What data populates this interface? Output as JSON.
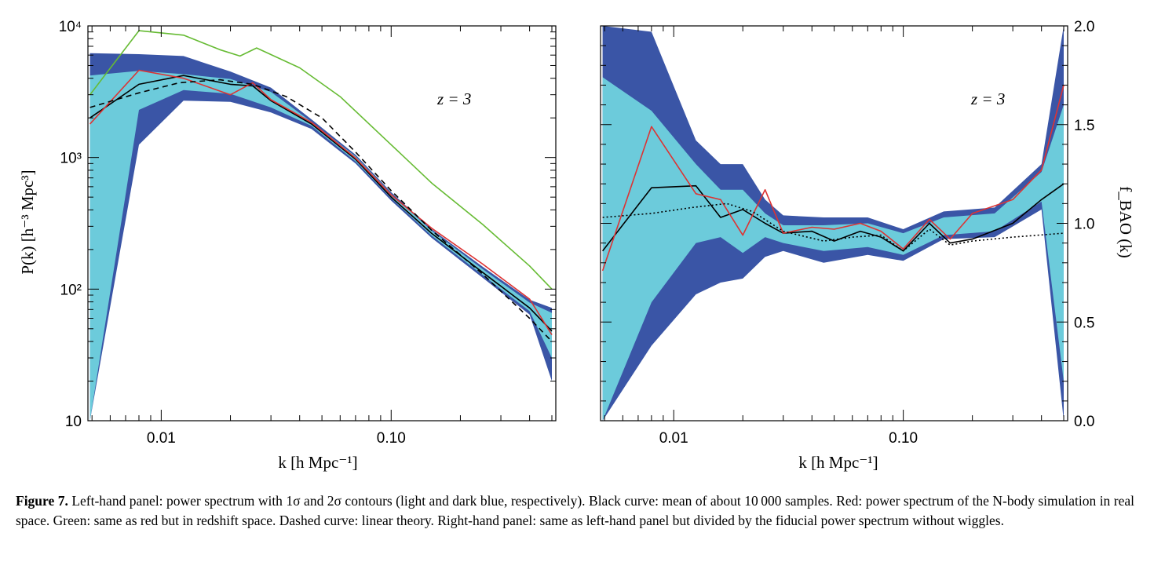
{
  "chart_data": [
    {
      "type": "line",
      "panel": "left",
      "xlabel": "k [h Mpc⁻¹]",
      "ylabel": "P(k) [h⁻³ Mpc³]",
      "x_scale": "log",
      "y_scale": "log",
      "xlim": [
        0.0048,
        0.52
      ],
      "ylim": [
        10,
        10000
      ],
      "x_ticks": [
        0.01,
        0.1
      ],
      "x_tick_labels": [
        "0.01",
        "0.10"
      ],
      "y_ticks": [
        10,
        100,
        1000,
        10000
      ],
      "y_tick_labels": [
        "10",
        "10²",
        "10³",
        "10⁴"
      ],
      "annotation": "z = 3",
      "bands": [
        {
          "level": "2sigma",
          "color": "#3a55a6",
          "x": [
            0.0049,
            0.008,
            0.0125,
            0.02,
            0.03,
            0.045,
            0.07,
            0.1,
            0.15,
            0.25,
            0.4,
            0.5
          ],
          "upper": [
            6200,
            6100,
            5900,
            4500,
            3400,
            1950,
            1050,
            545,
            285,
            148,
            83,
            72
          ],
          "lower": [
            10,
            1250,
            2700,
            2650,
            2200,
            1650,
            900,
            470,
            245,
            122,
            64,
            20
          ]
        },
        {
          "level": "1sigma",
          "color": "#6ccbdb",
          "x": [
            0.0049,
            0.008,
            0.0125,
            0.02,
            0.03,
            0.045,
            0.07,
            0.1,
            0.15,
            0.25,
            0.4,
            0.5
          ],
          "upper": [
            4200,
            4550,
            4300,
            3950,
            3150,
            1870,
            1020,
            530,
            278,
            142,
            79,
            66
          ],
          "lower": [
            10,
            2300,
            3250,
            3050,
            2400,
            1740,
            935,
            490,
            255,
            128,
            68,
            30
          ]
        }
      ],
      "series": [
        {
          "color": "#000000",
          "style": "solid",
          "x": [
            0.0049,
            0.008,
            0.0125,
            0.02,
            0.025,
            0.03,
            0.045,
            0.07,
            0.1,
            0.15,
            0.25,
            0.4,
            0.5
          ],
          "values": [
            2000,
            3600,
            4200,
            3600,
            3500,
            2700,
            1800,
            970,
            500,
            265,
            134,
            72,
            48
          ]
        },
        {
          "name": "Red",
          "color": "#dd3333",
          "style": "solid",
          "x": [
            0.0049,
            0.008,
            0.0125,
            0.02,
            0.025,
            0.03,
            0.045,
            0.07,
            0.1,
            0.15,
            0.25,
            0.4,
            0.5
          ],
          "values": [
            1800,
            4600,
            4000,
            3000,
            3700,
            2750,
            1850,
            990,
            520,
            290,
            155,
            84,
            45
          ]
        },
        {
          "name": "Green",
          "color": "#66bb33",
          "style": "solid",
          "x": [
            0.0049,
            0.008,
            0.0125,
            0.018,
            0.022,
            0.026,
            0.04,
            0.06,
            0.1,
            0.15,
            0.25,
            0.4,
            0.5
          ],
          "values": [
            3000,
            9200,
            8500,
            6600,
            5900,
            6800,
            4800,
            2900,
            1250,
            640,
            310,
            150,
            100
          ]
        },
        {
          "name": "Dashed curve",
          "color": "#000000",
          "style": "dashed",
          "x": [
            0.0049,
            0.008,
            0.012,
            0.018,
            0.025,
            0.035,
            0.05,
            0.07,
            0.1,
            0.15,
            0.25,
            0.4,
            0.5
          ],
          "values": [
            2400,
            3100,
            3700,
            3900,
            3600,
            2900,
            2000,
            1100,
            560,
            280,
            130,
            60,
            40
          ]
        }
      ]
    },
    {
      "type": "line",
      "panel": "right",
      "xlabel": "k [h Mpc⁻¹]",
      "ylabel": "f_BAO (k)",
      "x_scale": "log",
      "y_scale": "linear",
      "xlim": [
        0.0048,
        0.52
      ],
      "ylim": [
        0.0,
        2.0
      ],
      "x_ticks": [
        0.01,
        0.1
      ],
      "x_tick_labels": [
        "0.01",
        "0.10"
      ],
      "y_ticks": [
        0.0,
        0.5,
        1.0,
        1.5,
        2.0
      ],
      "y_tick_labels": [
        "0.0",
        "0.5",
        "1.0",
        "1.5",
        "2.0"
      ],
      "annotation": "z = 3",
      "bands": [
        {
          "level": "2sigma",
          "color": "#3a55a6",
          "x": [
            0.0049,
            0.008,
            0.0125,
            0.016,
            0.02,
            0.025,
            0.03,
            0.045,
            0.07,
            0.1,
            0.15,
            0.25,
            0.4,
            0.5
          ],
          "upper": [
            2.0,
            1.97,
            1.42,
            1.3,
            1.3,
            1.12,
            1.04,
            1.03,
            1.03,
            0.97,
            1.06,
            1.08,
            1.3,
            2.0
          ],
          "lower": [
            0.0,
            0.38,
            0.64,
            0.7,
            0.72,
            0.83,
            0.86,
            0.8,
            0.84,
            0.81,
            0.92,
            0.93,
            1.07,
            0.0
          ]
        },
        {
          "level": "1sigma",
          "color": "#6ccbdb",
          "x": [
            0.0049,
            0.008,
            0.0125,
            0.016,
            0.02,
            0.025,
            0.03,
            0.045,
            0.07,
            0.1,
            0.15,
            0.25,
            0.4,
            0.5
          ],
          "upper": [
            1.74,
            1.57,
            1.3,
            1.17,
            1.17,
            1.05,
            0.99,
            0.99,
            1.0,
            0.95,
            1.03,
            1.05,
            1.26,
            1.6
          ],
          "lower": [
            0.0,
            0.6,
            0.9,
            0.93,
            0.85,
            0.93,
            0.9,
            0.86,
            0.88,
            0.84,
            0.94,
            0.96,
            1.11,
            0.2
          ]
        }
      ],
      "series": [
        {
          "color": "#000000",
          "style": "solid",
          "x": [
            0.0049,
            0.008,
            0.0125,
            0.016,
            0.02,
            0.025,
            0.03,
            0.04,
            0.05,
            0.065,
            0.08,
            0.1,
            0.13,
            0.16,
            0.2,
            0.3,
            0.4,
            0.5
          ],
          "values": [
            0.86,
            1.18,
            1.19,
            1.03,
            1.07,
            1.0,
            0.95,
            0.96,
            0.91,
            0.96,
            0.93,
            0.86,
            1.0,
            0.9,
            0.92,
            1.0,
            1.12,
            1.2
          ]
        },
        {
          "name": "Red",
          "color": "#dd3333",
          "style": "solid",
          "x": [
            0.0049,
            0.008,
            0.0125,
            0.016,
            0.02,
            0.025,
            0.03,
            0.04,
            0.05,
            0.065,
            0.08,
            0.1,
            0.13,
            0.16,
            0.2,
            0.3,
            0.4,
            0.5
          ],
          "values": [
            0.76,
            1.49,
            1.15,
            1.12,
            0.94,
            1.17,
            0.95,
            0.98,
            0.97,
            1.0,
            0.96,
            0.87,
            1.02,
            0.92,
            1.05,
            1.12,
            1.27,
            1.7
          ]
        },
        {
          "name": "Dotted",
          "color": "#000000",
          "style": "dotted",
          "x": [
            0.0049,
            0.008,
            0.012,
            0.017,
            0.022,
            0.03,
            0.045,
            0.06,
            0.08,
            0.1,
            0.13,
            0.16,
            0.2,
            0.3,
            0.5
          ],
          "values": [
            1.03,
            1.05,
            1.08,
            1.1,
            1.06,
            0.96,
            0.91,
            0.93,
            0.94,
            0.86,
            0.97,
            0.89,
            0.91,
            0.93,
            0.95
          ]
        }
      ]
    }
  ],
  "caption": {
    "label": "Figure 7.",
    "text": "Left-hand panel: power spectrum with 1σ and 2σ contours (light and dark blue, respectively). Black curve: mean of about 10 000 samples. Red: power spectrum of the N-body simulation in real space. Green: same as red but in redshift space. Dashed curve: linear theory. Right-hand panel: same as left-hand panel but divided by the fiducial power spectrum without wiggles."
  }
}
